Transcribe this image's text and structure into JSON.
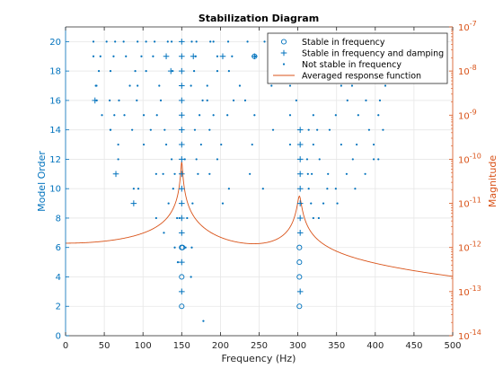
{
  "chart_data": {
    "type": "scatter",
    "title": "Stabilization Diagram",
    "xlabel": "Frequency (Hz)",
    "ylabel_left": "Model Order",
    "ylabel_right": "Magnitude",
    "xlim": [
      0,
      500
    ],
    "ylim_left": [
      0,
      21
    ],
    "ylim_right": [
      1e-14,
      1e-07
    ],
    "right_scale": "log",
    "grid": true,
    "legend_position": "top-right",
    "x_ticks": [
      "0",
      "50",
      "100",
      "150",
      "200",
      "250",
      "300",
      "350",
      "400",
      "450",
      "500"
    ],
    "y_ticks_left": [
      "0",
      "2",
      "4",
      "6",
      "8",
      "10",
      "12",
      "14",
      "16",
      "18",
      "20"
    ],
    "y_ticks_right": [
      {
        "base": "10",
        "exp": "-14"
      },
      {
        "base": "10",
        "exp": "-13"
      },
      {
        "base": "10",
        "exp": "-12"
      },
      {
        "base": "10",
        "exp": "-11"
      },
      {
        "base": "10",
        "exp": "-10"
      },
      {
        "base": "10",
        "exp": "-9"
      },
      {
        "base": "10",
        "exp": "-8"
      },
      {
        "base": "10",
        "exp": "-7"
      }
    ],
    "colors": {
      "points": "#0072bd",
      "curve": "#d95319",
      "axis_left": "#0072bd",
      "axis_right": "#d95319",
      "grid": "#e6e6e6",
      "text": "#262626"
    },
    "series": [
      {
        "name": "Stable in frequency",
        "marker": "circle",
        "points": [
          [
            150,
            2
          ],
          [
            150,
            4
          ],
          [
            150,
            6
          ],
          [
            151,
            6
          ],
          [
            302,
            2
          ],
          [
            302,
            4
          ],
          [
            302,
            5
          ],
          [
            302,
            6
          ],
          [
            244,
            19
          ]
        ]
      },
      {
        "name": "Stable in frequency and damping",
        "marker": "plus",
        "points": [
          [
            150,
            3
          ],
          [
            150,
            5
          ],
          [
            150,
            7
          ],
          [
            150,
            8
          ],
          [
            150,
            9
          ],
          [
            150,
            10
          ],
          [
            150,
            11
          ],
          [
            150,
            12
          ],
          [
            150,
            13
          ],
          [
            150,
            14
          ],
          [
            150,
            15
          ],
          [
            150,
            16
          ],
          [
            150,
            17
          ],
          [
            150,
            18
          ],
          [
            150,
            19
          ],
          [
            150,
            20
          ],
          [
            303,
            3
          ],
          [
            303,
            7
          ],
          [
            303,
            8
          ],
          [
            303,
            9
          ],
          [
            303,
            10
          ],
          [
            303,
            11
          ],
          [
            303,
            12
          ],
          [
            303,
            13
          ],
          [
            303,
            14
          ],
          [
            38,
            16
          ],
          [
            65,
            11
          ],
          [
            88,
            9
          ],
          [
            130,
            19
          ],
          [
            136,
            18
          ],
          [
            165,
            19
          ],
          [
            203,
            19
          ],
          [
            244,
            19
          ]
        ]
      },
      {
        "name": "Not stable in frequency",
        "marker": "dot",
        "points": [
          [
            178,
            1
          ],
          [
            162,
            4
          ],
          [
            163,
            6
          ],
          [
            155,
            6
          ],
          [
            145,
            5
          ],
          [
            141,
            6
          ],
          [
            144,
            8
          ],
          [
            127,
            7
          ],
          [
            117,
            8
          ],
          [
            88,
            10
          ],
          [
            68,
            12
          ],
          [
            58,
            14
          ],
          [
            47,
            15
          ],
          [
            40,
            16
          ],
          [
            39,
            17
          ],
          [
            36,
            19
          ],
          [
            36,
            20
          ],
          [
            53,
            20
          ],
          [
            64,
            20
          ],
          [
            75,
            20
          ],
          [
            93,
            20
          ],
          [
            104,
            20
          ],
          [
            115,
            20
          ],
          [
            132,
            20
          ],
          [
            137,
            20
          ],
          [
            163,
            20
          ],
          [
            169,
            20
          ],
          [
            187,
            20
          ],
          [
            191,
            20
          ],
          [
            210,
            20
          ],
          [
            235,
            20
          ],
          [
            257,
            20
          ],
          [
            280,
            20
          ],
          [
            315,
            20
          ],
          [
            340,
            20
          ],
          [
            377,
            20
          ],
          [
            403,
            20
          ],
          [
            415,
            20
          ],
          [
            435,
            20
          ],
          [
            442,
            20
          ],
          [
            450,
            20
          ],
          [
            45,
            19
          ],
          [
            62,
            19
          ],
          [
            78,
            19
          ],
          [
            98,
            19
          ],
          [
            113,
            19
          ],
          [
            168,
            19
          ],
          [
            196,
            19
          ],
          [
            215,
            19
          ],
          [
            245,
            19
          ],
          [
            275,
            19
          ],
          [
            310,
            19
          ],
          [
            331,
            19
          ],
          [
            363,
            19
          ],
          [
            392,
            19
          ],
          [
            420,
            19
          ],
          [
            43,
            18
          ],
          [
            58,
            18
          ],
          [
            90,
            18
          ],
          [
            104,
            18
          ],
          [
            138,
            18
          ],
          [
            166,
            18
          ],
          [
            196,
            18
          ],
          [
            211,
            18
          ],
          [
            300,
            18
          ],
          [
            363,
            18
          ],
          [
            390,
            18
          ],
          [
            423,
            18
          ],
          [
            40,
            17
          ],
          [
            83,
            17
          ],
          [
            93,
            17
          ],
          [
            121,
            17
          ],
          [
            162,
            17
          ],
          [
            183,
            17
          ],
          [
            225,
            17
          ],
          [
            266,
            17
          ],
          [
            290,
            17
          ],
          [
            356,
            17
          ],
          [
            370,
            17
          ],
          [
            413,
            17
          ],
          [
            57,
            16
          ],
          [
            69,
            16
          ],
          [
            92,
            16
          ],
          [
            123,
            16
          ],
          [
            177,
            16
          ],
          [
            183,
            16
          ],
          [
            217,
            16
          ],
          [
            232,
            16
          ],
          [
            298,
            16
          ],
          [
            364,
            16
          ],
          [
            388,
            16
          ],
          [
            406,
            16
          ],
          [
            63,
            15
          ],
          [
            76,
            15
          ],
          [
            101,
            15
          ],
          [
            118,
            15
          ],
          [
            173,
            15
          ],
          [
            191,
            15
          ],
          [
            209,
            15
          ],
          [
            244,
            15
          ],
          [
            290,
            15
          ],
          [
            320,
            15
          ],
          [
            349,
            15
          ],
          [
            378,
            15
          ],
          [
            404,
            15
          ],
          [
            58,
            14
          ],
          [
            86,
            14
          ],
          [
            110,
            14
          ],
          [
            128,
            14
          ],
          [
            167,
            14
          ],
          [
            186,
            14
          ],
          [
            268,
            14
          ],
          [
            314,
            14
          ],
          [
            325,
            14
          ],
          [
            341,
            14
          ],
          [
            392,
            14
          ],
          [
            410,
            14
          ],
          [
            68,
            13
          ],
          [
            101,
            13
          ],
          [
            130,
            13
          ],
          [
            175,
            13
          ],
          [
            201,
            13
          ],
          [
            241,
            13
          ],
          [
            290,
            13
          ],
          [
            320,
            13
          ],
          [
            356,
            13
          ],
          [
            376,
            13
          ],
          [
            398,
            13
          ],
          [
            137,
            12
          ],
          [
            154,
            12
          ],
          [
            169,
            12
          ],
          [
            196,
            12
          ],
          [
            312,
            12
          ],
          [
            328,
            12
          ],
          [
            371,
            12
          ],
          [
            398,
            12
          ],
          [
            404,
            12
          ],
          [
            117,
            11
          ],
          [
            126,
            11
          ],
          [
            141,
            11
          ],
          [
            171,
            11
          ],
          [
            186,
            11
          ],
          [
            238,
            11
          ],
          [
            313,
            11
          ],
          [
            318,
            11
          ],
          [
            339,
            11
          ],
          [
            363,
            11
          ],
          [
            387,
            11
          ],
          [
            94,
            10
          ],
          [
            139,
            10
          ],
          [
            211,
            10
          ],
          [
            255,
            10
          ],
          [
            314,
            10
          ],
          [
            338,
            10
          ],
          [
            349,
            10
          ],
          [
            374,
            10
          ],
          [
            133,
            9
          ],
          [
            164,
            9
          ],
          [
            203,
            9
          ],
          [
            317,
            9
          ],
          [
            333,
            9
          ],
          [
            351,
            9
          ],
          [
            147,
            8
          ],
          [
            157,
            8
          ],
          [
            320,
            8
          ],
          [
            327,
            8
          ]
        ]
      },
      {
        "name": "Averaged response function",
        "marker": "line",
        "note_peaks_hz": [
          150,
          302
        ]
      }
    ]
  }
}
